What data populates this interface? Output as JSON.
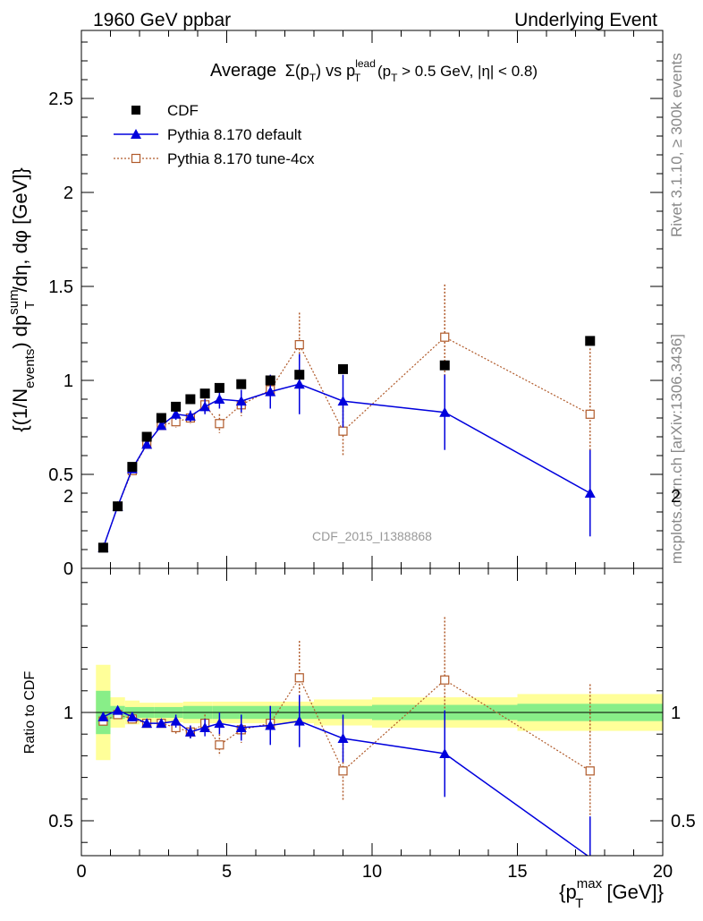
{
  "header": {
    "left": "1960 GeV ppbar",
    "right": "Underlying Event"
  },
  "side_labels": {
    "rivet": "Rivet 3.1.10, ≥ 300k events",
    "mcplots": "mcplots.cern.ch [arXiv:1306.3436]"
  },
  "watermark": "CDF_2015_I1388868",
  "chart_data": [
    {
      "type": "scatter",
      "title": "Average Σ(p_T) vs p_T^lead (p_T > 0.5 GeV, |η| < 0.8)",
      "title_parts": {
        "word": "Average",
        "sigma": "Σ(p",
        "t_sub": "T",
        "close": ")",
        "vs": " vs p",
        "lead_sup": "lead",
        "lead_sub": "T",
        "cut": " (p",
        "cut_sub": "T",
        "cut_rest": " > 0.5 GeV, |η| < 0.8)"
      },
      "ylabel": "{(1/N_events) dp_T^sum/dη, dφ [GeV]}",
      "ylabel_parts": {
        "a": "{(1/N",
        "a_sub": "events",
        "b": ") dp",
        "b_sup": "sum",
        "b_sub": "T",
        "c": "/dη, dφ [GeV]}"
      },
      "xlim": [
        0,
        20
      ],
      "ylim": [
        0,
        2.9
      ],
      "yticks": [
        "0",
        "0.5",
        "1",
        "1.5",
        "2",
        "2.5"
      ],
      "legend_position": "top-left",
      "series": [
        {
          "name": "CDF",
          "color": "#000000",
          "marker": "square",
          "x": [
            0.75,
            1.25,
            1.75,
            2.25,
            2.75,
            3.25,
            3.75,
            4.25,
            4.75,
            5.5,
            6.5,
            7.5,
            9.0,
            12.5,
            17.5
          ],
          "y": [
            0.11,
            0.33,
            0.54,
            0.7,
            0.8,
            0.86,
            0.9,
            0.93,
            0.96,
            0.98,
            1.0,
            1.03,
            1.06,
            1.08,
            1.21
          ],
          "yerr": [
            0,
            0,
            0,
            0,
            0,
            0,
            0,
            0,
            0,
            0,
            0,
            0,
            0,
            0,
            0
          ]
        },
        {
          "name": "Pythia 8.170 default",
          "color": "#0000dd",
          "marker": "triangle",
          "x": [
            0.75,
            1.25,
            1.75,
            2.25,
            2.75,
            3.25,
            3.75,
            4.25,
            4.75,
            5.5,
            6.5,
            7.5,
            9.0,
            12.5,
            17.5
          ],
          "y": [
            0.11,
            0.33,
            0.53,
            0.66,
            0.76,
            0.82,
            0.81,
            0.86,
            0.9,
            0.89,
            0.94,
            0.98,
            0.89,
            0.83,
            0.4
          ],
          "yerr": [
            0.01,
            0.01,
            0.015,
            0.02,
            0.02,
            0.03,
            0.03,
            0.04,
            0.05,
            0.06,
            0.09,
            0.16,
            0.14,
            0.2,
            0.23
          ]
        },
        {
          "name": "Pythia 8.170 tune-4cx",
          "color": "#b05a2a",
          "marker": "open-square",
          "x": [
            0.75,
            1.25,
            1.75,
            2.25,
            2.75,
            3.25,
            3.75,
            4.25,
            4.75,
            5.5,
            6.5,
            7.5,
            9.0,
            12.5,
            17.5
          ],
          "y": [
            0.11,
            0.33,
            0.52,
            0.66,
            0.76,
            0.78,
            0.8,
            0.87,
            0.77,
            0.87,
            0.95,
            1.19,
            0.73,
            1.23,
            0.82
          ],
          "yerr": [
            0.01,
            0.01,
            0.015,
            0.02,
            0.02,
            0.03,
            0.03,
            0.04,
            0.05,
            0.06,
            0.08,
            0.17,
            0.13,
            0.28,
            0.35
          ]
        }
      ]
    },
    {
      "type": "scatter",
      "ylabel": "Ratio to CDF",
      "xlabel": "{p_T^max [GeV]}",
      "xlabel_parts": {
        "a": "{p",
        "sup": "max",
        "sub": "T",
        "b": " [GeV]}"
      },
      "xlim": [
        0,
        20
      ],
      "ylim": [
        0.35,
        2.3
      ],
      "xticks": [
        "0",
        "5",
        "10",
        "15",
        "20"
      ],
      "yticks": [
        "0.5",
        "1",
        "2"
      ],
      "bands": {
        "stat_color": "#88ee88",
        "total_color": "#ffff99",
        "edges": [
          0.5,
          1.0,
          1.5,
          2.0,
          2.5,
          3.0,
          3.5,
          4.0,
          4.5,
          5.0,
          6.0,
          7.0,
          8.0,
          10.0,
          15.0,
          20.0
        ],
        "stat_halfwidth": [
          0.1,
          0.03,
          0.025,
          0.025,
          0.025,
          0.025,
          0.03,
          0.03,
          0.03,
          0.03,
          0.03,
          0.03,
          0.03,
          0.035,
          0.04
        ],
        "total_halfwidth": [
          0.22,
          0.07,
          0.055,
          0.045,
          0.045,
          0.045,
          0.05,
          0.05,
          0.05,
          0.05,
          0.05,
          0.05,
          0.06,
          0.07,
          0.085
        ]
      },
      "series": [
        {
          "name": "Pythia 8.170 default",
          "color": "#0000dd",
          "marker": "triangle",
          "x": [
            0.75,
            1.25,
            1.75,
            2.25,
            2.75,
            3.25,
            3.75,
            4.25,
            4.75,
            5.5,
            6.5,
            7.5,
            9.0,
            12.5,
            17.5
          ],
          "y": [
            0.98,
            1.01,
            0.98,
            0.95,
            0.95,
            0.96,
            0.91,
            0.93,
            0.95,
            0.93,
            0.94,
            0.96,
            0.88,
            0.81,
            0.33
          ],
          "yerr": [
            0.015,
            0.015,
            0.02,
            0.02,
            0.02,
            0.03,
            0.03,
            0.04,
            0.05,
            0.06,
            0.09,
            0.12,
            0.11,
            0.2,
            0.19
          ]
        },
        {
          "name": "Pythia 8.170 tune-4cx",
          "color": "#b05a2a",
          "marker": "open-square",
          "x": [
            0.75,
            1.25,
            1.75,
            2.25,
            2.75,
            3.25,
            3.75,
            4.25,
            4.75,
            5.5,
            6.5,
            7.5,
            9.0,
            12.5,
            17.5
          ],
          "y": [
            0.96,
            0.99,
            0.97,
            0.95,
            0.95,
            0.93,
            0.91,
            0.95,
            0.85,
            0.92,
            0.95,
            1.16,
            0.73,
            1.15,
            0.73
          ],
          "yerr": [
            0.015,
            0.015,
            0.02,
            0.02,
            0.02,
            0.03,
            0.03,
            0.04,
            0.05,
            0.06,
            0.08,
            0.17,
            0.14,
            0.29,
            0.4
          ]
        }
      ]
    }
  ]
}
